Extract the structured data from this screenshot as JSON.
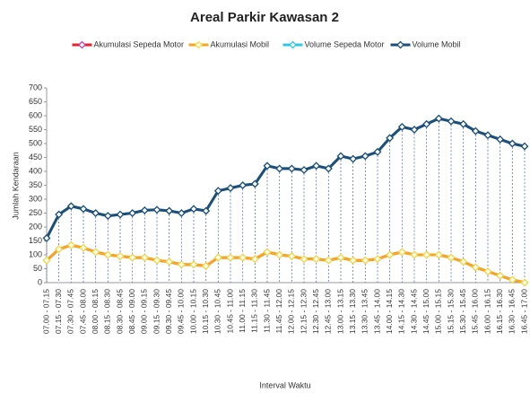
{
  "chart_data": {
    "type": "line",
    "title": "Areal Parkir Kawasan 2",
    "x_label": "Interval Waktu",
    "y_label": "Jumlah Kendaraan",
    "categories": [
      "07.00 - 07.15",
      "07.15 - 07.30",
      "07.30 - 07.45",
      "07.45 - 08.00",
      "08.00 - 08.15",
      "08.15 - 08.30",
      "08.30 - 08.45",
      "08.45 - 09.00",
      "09.00 - 09.15",
      "09.15 - 09.30",
      "09.30 - 09.45",
      "09.45 - 10.00",
      "10.00 - 10.15",
      "10.15 - 10.30",
      "10.30 - 10.45",
      "10.45 - 11.00",
      "11.00 - 11.15",
      "11.15 - 11.30",
      "11.30 - 11.45",
      "11.45 - 12.00",
      "12.00 - 12.15",
      "12.15 - 12.30",
      "12.30 - 12.45",
      "12.45 - 13.00",
      "13.00 - 13.15",
      "13.15 - 13.30",
      "13.30 - 13.45",
      "13.45 - 14.00",
      "14.00 - 14.15",
      "14.15 - 14.30",
      "14.30 - 14.45",
      "14.45 - 15.00",
      "15.00 - 15.15",
      "15.15 - 15.30",
      "15.30 - 15.45",
      "15.45 - 16.00",
      "16.00 - 16.15",
      "16.15 - 16.30",
      "16.30 - 16.45",
      "16.45 - 17.00"
    ],
    "series": [
      {
        "name": "Akumulasi  Sepeda Motor",
        "color": "#e8202a",
        "marker": "#c040c0",
        "values": [
          80,
          120,
          135,
          125,
          110,
          100,
          95,
          90,
          90,
          80,
          75,
          65,
          65,
          60,
          90,
          90,
          90,
          85,
          110,
          100,
          95,
          85,
          85,
          80,
          90,
          80,
          80,
          85,
          100,
          110,
          100,
          100,
          100,
          90,
          75,
          55,
          40,
          25,
          10,
          0
        ]
      },
      {
        "name": "Akumulasi  Mobil",
        "color": "#f5a623",
        "marker": "#f0e040",
        "values": [
          80,
          120,
          135,
          125,
          110,
          100,
          95,
          90,
          90,
          80,
          75,
          65,
          65,
          60,
          90,
          90,
          90,
          85,
          110,
          100,
          95,
          85,
          85,
          80,
          90,
          80,
          80,
          85,
          100,
          110,
          100,
          100,
          100,
          90,
          75,
          55,
          40,
          25,
          10,
          0
        ]
      },
      {
        "name": "Volume Sepeda Motor",
        "color": "#30c8e0",
        "marker": "#30c8e0",
        "values": [
          160,
          245,
          275,
          265,
          250,
          240,
          245,
          250,
          260,
          262,
          258,
          250,
          265,
          258,
          330,
          340,
          350,
          355,
          420,
          410,
          410,
          405,
          420,
          410,
          455,
          445,
          455,
          470,
          520,
          560,
          550,
          570,
          590,
          580,
          570,
          545,
          530,
          515,
          500,
          490
        ]
      },
      {
        "name": "Volume Mobil",
        "color": "#1f4e79",
        "marker": "#1f4e79",
        "values": [
          160,
          245,
          275,
          265,
          250,
          240,
          245,
          250,
          260,
          262,
          258,
          250,
          265,
          258,
          330,
          340,
          350,
          355,
          420,
          410,
          410,
          405,
          420,
          410,
          455,
          445,
          455,
          470,
          520,
          560,
          550,
          570,
          590,
          580,
          570,
          545,
          530,
          515,
          500,
          490
        ]
      }
    ],
    "ylim": [
      0,
      700
    ],
    "yticks": [
      0,
      50,
      100,
      150,
      200,
      250,
      300,
      350,
      400,
      450,
      500,
      550,
      600,
      650,
      700
    ],
    "legend": "top"
  }
}
